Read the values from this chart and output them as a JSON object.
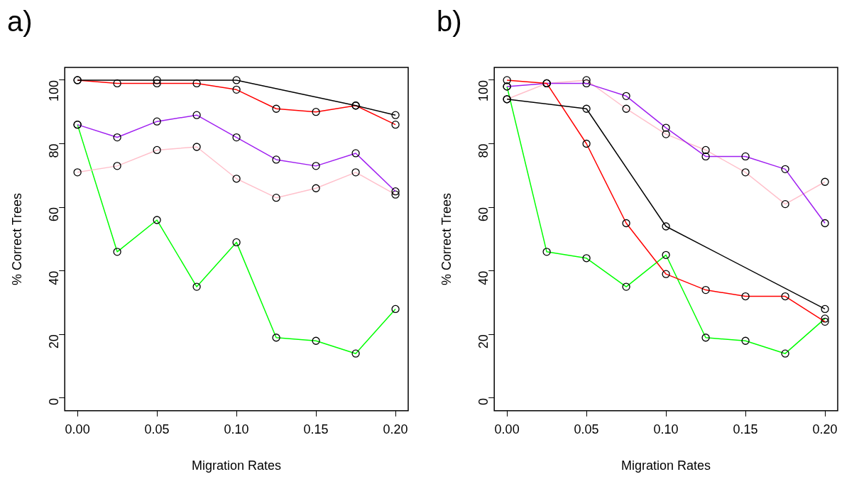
{
  "chart_data": [
    {
      "type": "line",
      "title": "a)",
      "xlabel": "Migration Rates",
      "ylabel": "% Correct Trees",
      "x": [
        0,
        0.025,
        0.05,
        0.075,
        0.1,
        0.125,
        0.15,
        0.175,
        0.2
      ],
      "series": [
        {
          "color": "#000000",
          "x": [
            0,
            0.05,
            0.1,
            0.175,
            0.2
          ],
          "values": [
            100,
            100,
            100,
            92,
            89
          ]
        },
        {
          "color": "#ff0000",
          "values": [
            100,
            99,
            99,
            99,
            97,
            91,
            90,
            92,
            86
          ]
        },
        {
          "color": "#a020f0",
          "values": [
            86,
            82,
            87,
            89,
            82,
            75,
            73,
            77,
            65
          ]
        },
        {
          "color": "#ffc0cb",
          "values": [
            71,
            73,
            78,
            79,
            69,
            63,
            66,
            71,
            64
          ]
        },
        {
          "color": "#00ff00",
          "values": [
            86,
            46,
            56,
            35,
            49,
            19,
            18,
            14,
            28
          ]
        }
      ],
      "xlim": [
        -0.008,
        0.208
      ],
      "xticks": [
        {
          "value": 0,
          "label": "0.00"
        },
        {
          "value": 0.05,
          "label": "0.05"
        },
        {
          "value": 0.1,
          "label": "0.10"
        },
        {
          "value": 0.15,
          "label": "0.15"
        },
        {
          "value": 0.2,
          "label": "0.20"
        }
      ],
      "ylim": [
        -4,
        104
      ],
      "yticks": [
        0,
        20,
        40,
        60,
        80,
        100
      ],
      "grid": false,
      "legend": false,
      "marker": "circle",
      "line_style": "solid"
    },
    {
      "type": "line",
      "title": "b)",
      "xlabel": "Migration Rates",
      "ylabel": "% Correct Trees",
      "x": [
        0,
        0.025,
        0.05,
        0.075,
        0.1,
        0.125,
        0.15,
        0.175,
        0.2
      ],
      "series": [
        {
          "color": "#000000",
          "x": [
            0,
            0.05,
            0.1,
            0.2
          ],
          "values": [
            94,
            91,
            54,
            28
          ]
        },
        {
          "color": "#ff0000",
          "values": [
            100,
            99,
            80,
            55,
            39,
            34,
            32,
            32,
            24
          ]
        },
        {
          "color": "#a020f0",
          "values": [
            98,
            99,
            99,
            95,
            85,
            76,
            76,
            72,
            55
          ]
        },
        {
          "color": "#ffc0cb",
          "values": [
            94,
            99,
            100,
            91,
            83,
            78,
            71,
            61,
            68
          ]
        },
        {
          "color": "#00ff00",
          "values": [
            98,
            46,
            44,
            35,
            45,
            19,
            18,
            14,
            25
          ]
        }
      ],
      "xlim": [
        -0.008,
        0.208
      ],
      "xticks": [
        {
          "value": 0,
          "label": "0.00"
        },
        {
          "value": 0.05,
          "label": "0.05"
        },
        {
          "value": 0.1,
          "label": "0.10"
        },
        {
          "value": 0.15,
          "label": "0.15"
        },
        {
          "value": 0.2,
          "label": "0.20"
        }
      ],
      "ylim": [
        -4,
        104
      ],
      "yticks": [
        0,
        20,
        40,
        60,
        80,
        100
      ],
      "grid": false,
      "legend": false,
      "marker": "circle",
      "line_style": "solid"
    }
  ]
}
